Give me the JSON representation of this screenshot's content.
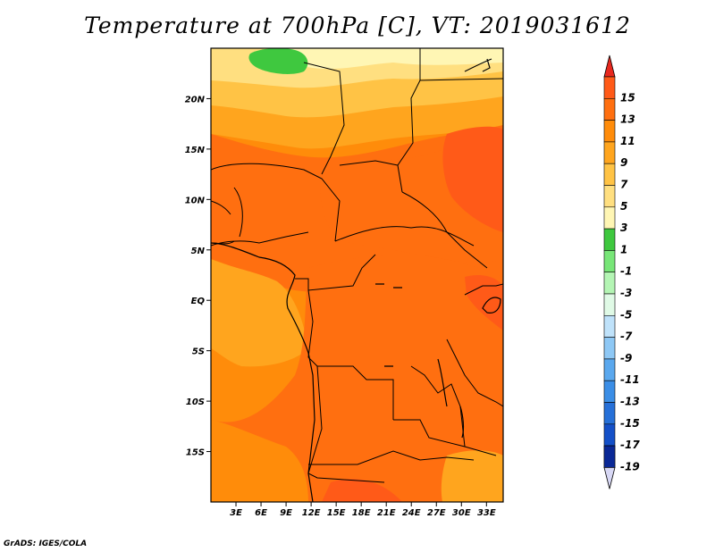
{
  "title": "Temperature at 700hPa [C], VT: 2019031612",
  "credit": "GrADS: IGES/COLA",
  "map": {
    "lon_range": [
      0,
      35
    ],
    "lat_range": [
      -20,
      25
    ],
    "lon_ticks": [
      {
        "value": 3,
        "label": "3E"
      },
      {
        "value": 6,
        "label": "6E"
      },
      {
        "value": 9,
        "label": "9E"
      },
      {
        "value": 12,
        "label": "12E"
      },
      {
        "value": 15,
        "label": "15E"
      },
      {
        "value": 18,
        "label": "18E"
      },
      {
        "value": 21,
        "label": "21E"
      },
      {
        "value": 24,
        "label": "24E"
      },
      {
        "value": 27,
        "label": "27E"
      },
      {
        "value": 30,
        "label": "30E"
      },
      {
        "value": 33,
        "label": "33E"
      }
    ],
    "lat_ticks": [
      {
        "value": 20,
        "label": "20N"
      },
      {
        "value": 15,
        "label": "15N"
      },
      {
        "value": 10,
        "label": "10N"
      },
      {
        "value": 5,
        "label": "5N"
      },
      {
        "value": 0,
        "label": "EQ"
      },
      {
        "value": -5,
        "label": "5S"
      },
      {
        "value": -10,
        "label": "10S"
      },
      {
        "value": -15,
        "label": "15S"
      }
    ]
  },
  "colorbar": {
    "levels": [
      {
        "label": "15",
        "color": "#ff5a18"
      },
      {
        "label": "13",
        "color": "#ff6f10"
      },
      {
        "label": "11",
        "color": "#ff8c0a"
      },
      {
        "label": "9",
        "color": "#ffa51e"
      },
      {
        "label": "7",
        "color": "#ffc345"
      },
      {
        "label": "5",
        "color": "#ffdf80"
      },
      {
        "label": "3",
        "color": "#fff6b4"
      },
      {
        "label": "1",
        "color": "#3fc83f"
      },
      {
        "label": "-1",
        "color": "#78e678"
      },
      {
        "label": "-3",
        "color": "#b4f5b4"
      },
      {
        "label": "-5",
        "color": "#e0fae6"
      },
      {
        "label": "-7",
        "color": "#bfe2fa"
      },
      {
        "label": "-9",
        "color": "#8ec8f5"
      },
      {
        "label": "-11",
        "color": "#5aa8ee"
      },
      {
        "label": "-13",
        "color": "#3b8ee6"
      },
      {
        "label": "-15",
        "color": "#2670d8"
      },
      {
        "label": "-17",
        "color": "#1450c8"
      },
      {
        "label": "-19",
        "color": "#0a2896"
      }
    ],
    "top_arrow_color": "#e8281e",
    "bottom_arrow_color": "#d8d8f5",
    "bottom_extra_color": "#000a6e"
  }
}
